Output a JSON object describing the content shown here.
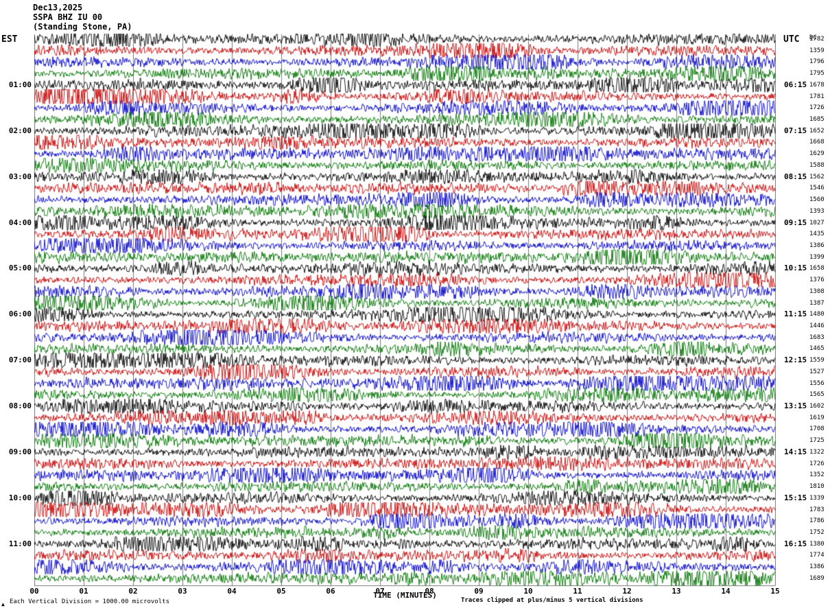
{
  "header": {
    "date": "Dec13,2025",
    "station": "SSPA BHZ IU 00",
    "location": "(Standing Stone, PA)",
    "left_tz": "EST",
    "right_tz": "UTC",
    "right_col_header": "DC"
  },
  "footer": {
    "xlabel": "TIME (MINUTES)",
    "left_note": "Each Vertical Division = 1000.00 microvolts",
    "right_note": "Traces clipped at plus/minus 5 vertical divisions",
    "corner_mark": "▲"
  },
  "chart_data": {
    "type": "line",
    "subtype": "helicorder-seismogram",
    "title": "SSPA BHZ IU 00 (Standing Stone, PA) Dec13,2025",
    "xlabel": "TIME (MINUTES)",
    "x_range": [
      0,
      15
    ],
    "x_tick_labels": [
      "00",
      "01",
      "02",
      "03",
      "04",
      "05",
      "06",
      "07",
      "08",
      "09",
      "10",
      "11",
      "12",
      "13",
      "14",
      "15"
    ],
    "num_rows": 48,
    "minutes_per_row": 15,
    "rows_per_hour": 4,
    "clip_divisions": 5,
    "microvolts_per_division": 1000.0,
    "trace_color_cycle": [
      "#000000",
      "#c80000",
      "#0000c8",
      "#007400"
    ],
    "left_hour_labels": [
      "01:00",
      "02:00",
      "03:00",
      "04:00",
      "05:00",
      "06:00",
      "07:00",
      "08:00",
      "09:00",
      "10:00",
      "11:00"
    ],
    "right_hour_labels": [
      "06:15",
      "07:15",
      "08:15",
      "09:15",
      "10:15",
      "11:15",
      "12:15",
      "13:15",
      "14:15",
      "15:15",
      "16:15"
    ],
    "row_dc_values": [
      "1782",
      "1359",
      "1796",
      "1795",
      "1678",
      "1781",
      "1726",
      "1685",
      "1652",
      "1668",
      "1629",
      "1588",
      "1562",
      "1546",
      "1560",
      "1393",
      "1027",
      "1435",
      "1386",
      "1399",
      "1658",
      "1376",
      "1308",
      "1387",
      "1480",
      "1446",
      "1683",
      "1465",
      "1559",
      "1527",
      "1556",
      "1565",
      "1602",
      "1619",
      "1708",
      "1725",
      "1322",
      "1726",
      "1352",
      "1810",
      "1339",
      "1783",
      "1786",
      "1752",
      "1380",
      "1774",
      "1386",
      "1689"
    ]
  }
}
